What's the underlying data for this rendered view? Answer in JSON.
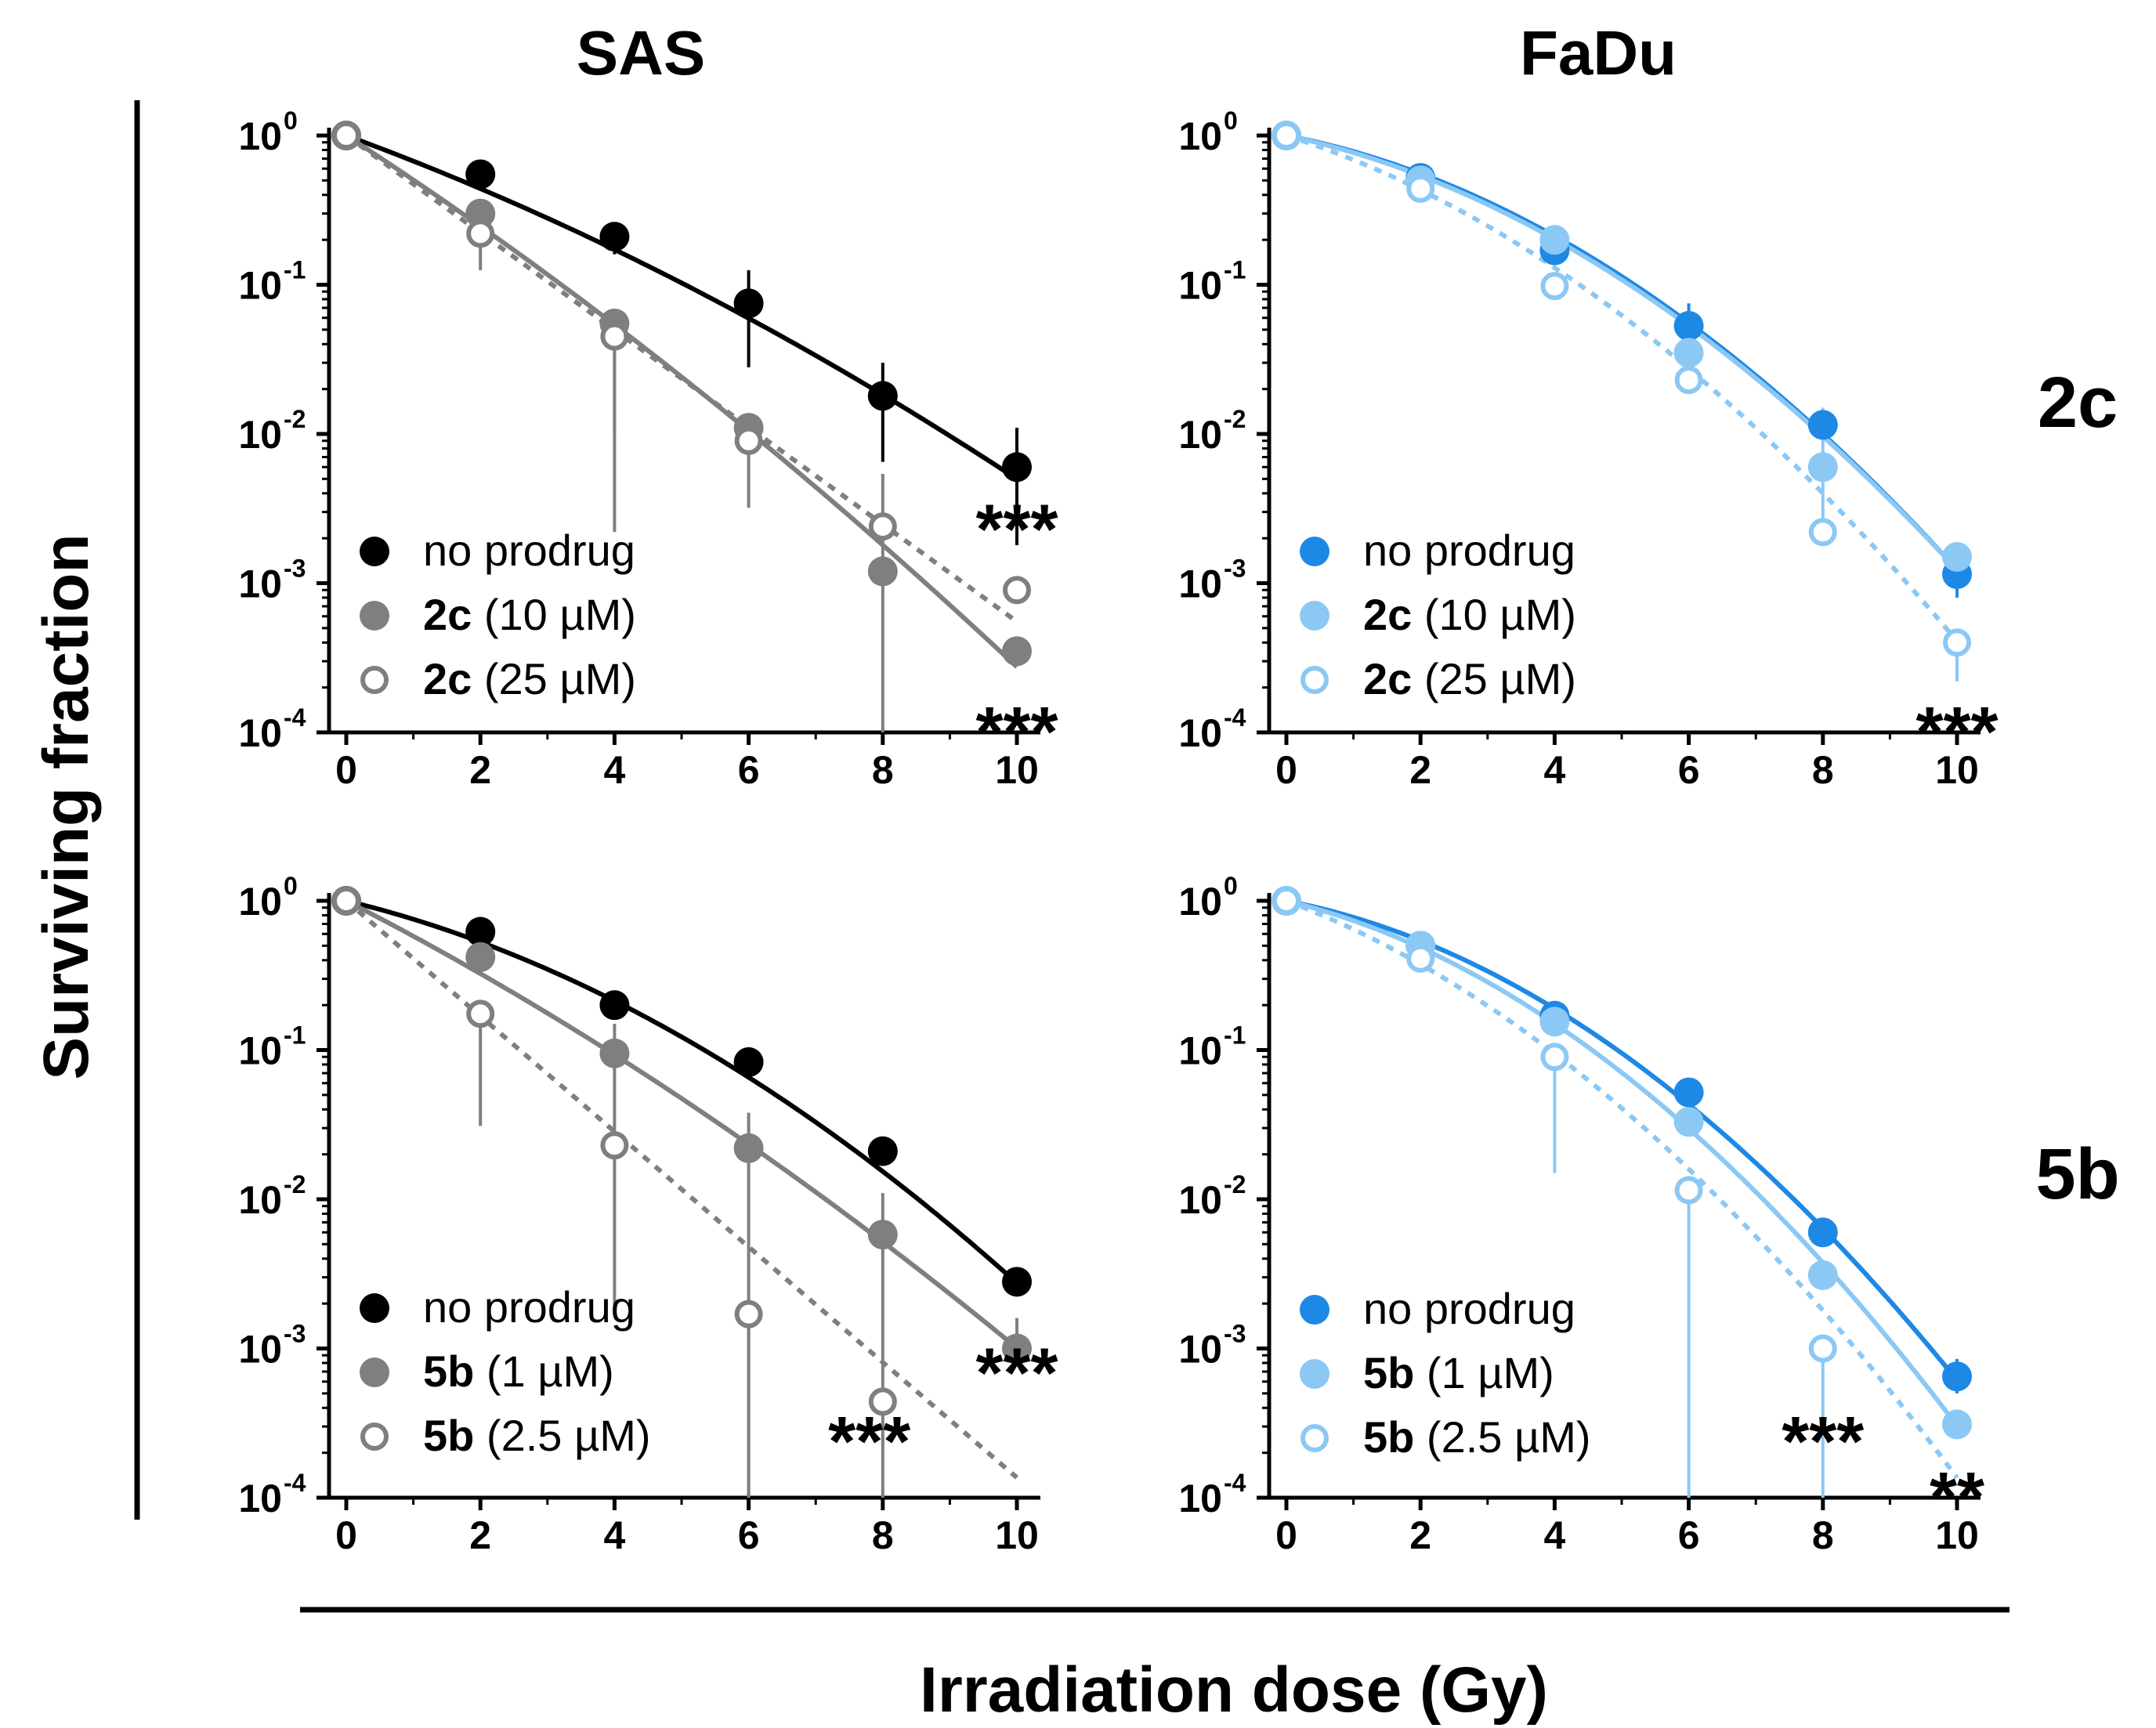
{
  "figure": {
    "columns": [
      {
        "title": "SAS"
      },
      {
        "title": "FaDu"
      }
    ],
    "rows": [
      {
        "label": "2c"
      },
      {
        "label": "5b"
      }
    ],
    "ylabel": "Surviving fraction",
    "xlabel": "Irradiation dose (Gy)"
  },
  "chart_data": [
    {
      "type": "scatter",
      "id": "sas-2c",
      "cell_line": "SAS",
      "compound": "2c",
      "x_ticks": [
        "0",
        "2",
        "4",
        "6",
        "8",
        "10"
      ],
      "y_ticks": [
        {
          "base": "10",
          "exp": "0"
        },
        {
          "base": "10",
          "exp": "-1"
        },
        {
          "base": "10",
          "exp": "-2"
        },
        {
          "base": "10",
          "exp": "-3"
        },
        {
          "base": "10",
          "exp": "-4"
        }
      ],
      "xlim": [
        0,
        10
      ],
      "ylim_log10": [
        -4,
        0
      ],
      "yscale": "log",
      "legend_position": "bottom-left",
      "series": [
        {
          "name": "no prodrug",
          "bold": "",
          "rest": "no prodrug",
          "color": "#000000",
          "marker": "filled",
          "line": "solid",
          "x": [
            0,
            2,
            4,
            6,
            8,
            10
          ],
          "y": [
            1.0,
            0.55,
            0.21,
            0.075,
            0.018,
            0.006
          ],
          "err_lo": [
            1.0,
            0.55,
            0.16,
            0.028,
            0.0065,
            0.0018
          ],
          "err_hi": [
            1.0,
            0.55,
            0.21,
            0.125,
            0.03,
            0.011
          ],
          "fit_alpha": 0.38,
          "fit_beta": 0.015
        },
        {
          "name": "2c (10 µM)",
          "bold": "2c",
          "rest": " (10 µM)",
          "color": "#7f7f7f",
          "marker": "filled",
          "line": "solid",
          "x": [
            0,
            2,
            4,
            6,
            8,
            10
          ],
          "y": [
            1.0,
            0.3,
            0.055,
            0.011,
            0.0012,
            0.00035
          ],
          "err_lo": [
            1.0,
            0.3,
            0.01,
            0.0032,
            5e-05,
            0.00035
          ],
          "err_hi": [
            1.0,
            0.3,
            0.06,
            0.011,
            0.0054,
            0.00035
          ],
          "fit_alpha": 0.67,
          "fit_beta": 0.015
        },
        {
          "name": "2c (25 µM)",
          "bold": "2c",
          "rest": " (25 µM)",
          "color": "#7f7f7f",
          "marker": "open",
          "line": "dotted",
          "x": [
            0,
            2,
            4,
            6,
            8,
            10
          ],
          "y": [
            1.0,
            0.22,
            0.045,
            0.009,
            0.0024,
            0.0009
          ],
          "err_lo": [
            1.0,
            0.125,
            0.0022,
            0.009,
            0.0024,
            0.0009
          ],
          "err_hi": [
            1.0,
            0.22,
            0.045,
            0.009,
            0.0024,
            0.0009
          ],
          "fit_alpha": 0.75,
          "fit_beta": 0.0
        }
      ],
      "annotations": [
        {
          "text": "***",
          "for": "2c (25 µM)",
          "x": 10,
          "y": 0.0025
        },
        {
          "text": "***",
          "for": "2c (10 µM)",
          "x": 10,
          "y": 0.00011
        }
      ]
    },
    {
      "type": "scatter",
      "id": "fadu-2c",
      "cell_line": "FaDu",
      "compound": "2c",
      "x_ticks": [
        "0",
        "2",
        "4",
        "6",
        "8",
        "10"
      ],
      "y_ticks": [
        {
          "base": "10",
          "exp": "0"
        },
        {
          "base": "10",
          "exp": "-1"
        },
        {
          "base": "10",
          "exp": "-2"
        },
        {
          "base": "10",
          "exp": "-3"
        },
        {
          "base": "10",
          "exp": "-4"
        }
      ],
      "xlim": [
        0,
        10
      ],
      "ylim_log10": [
        -4,
        0
      ],
      "yscale": "log",
      "legend_position": "bottom-left",
      "series": [
        {
          "name": "no prodrug",
          "bold": "",
          "rest": "no prodrug",
          "color": "#1e88e5",
          "marker": "filled",
          "line": "solid",
          "x": [
            0,
            2,
            4,
            6,
            8,
            10
          ],
          "y": [
            1.0,
            0.52,
            0.17,
            0.053,
            0.0115,
            0.00115
          ],
          "err_lo": [
            1.0,
            0.52,
            0.17,
            0.04,
            0.0115,
            0.0008
          ],
          "err_hi": [
            1.0,
            0.52,
            0.17,
            0.075,
            0.0115,
            0.00115
          ],
          "fit_alpha": 0.2,
          "fit_beta": 0.047
        },
        {
          "name": "2c (10 µM)",
          "bold": "2c",
          "rest": " (10 µM)",
          "color": "#8cc8f4",
          "marker": "filled",
          "line": "solid",
          "x": [
            0,
            2,
            4,
            6,
            8,
            10
          ],
          "y": [
            1.0,
            0.5,
            0.2,
            0.035,
            0.006,
            0.0015
          ],
          "err_lo": [
            1.0,
            0.5,
            0.2,
            0.035,
            0.0022,
            0.0015
          ],
          "err_hi": [
            1.0,
            0.5,
            0.2,
            0.035,
            0.015,
            0.0015
          ],
          "fit_alpha": 0.22,
          "fit_beta": 0.045
        },
        {
          "name": "2c (25 µM)",
          "bold": "2c",
          "rest": " (25 µM)",
          "color": "#8cc8f4",
          "marker": "open",
          "line": "dotted",
          "x": [
            0,
            2,
            4,
            6,
            8,
            10
          ],
          "y": [
            1.0,
            0.44,
            0.098,
            0.023,
            0.0022,
            0.0004
          ],
          "err_lo": [
            1.0,
            0.44,
            0.098,
            0.023,
            0.0022,
            0.00022
          ],
          "err_hi": [
            1.0,
            0.44,
            0.098,
            0.023,
            0.0022,
            0.0004
          ],
          "fit_alpha": 0.33,
          "fit_beta": 0.045
        }
      ],
      "annotations": [
        {
          "text": "***",
          "for": "2c (25 µM)",
          "x": 10,
          "y": 0.00011
        }
      ]
    },
    {
      "type": "scatter",
      "id": "sas-5b",
      "cell_line": "SAS",
      "compound": "5b",
      "x_ticks": [
        "0",
        "2",
        "4",
        "6",
        "8",
        "10"
      ],
      "y_ticks": [
        {
          "base": "10",
          "exp": "0"
        },
        {
          "base": "10",
          "exp": "-1"
        },
        {
          "base": "10",
          "exp": "-2"
        },
        {
          "base": "10",
          "exp": "-3"
        },
        {
          "base": "10",
          "exp": "-4"
        }
      ],
      "xlim": [
        0,
        10
      ],
      "ylim_log10": [
        -4,
        0
      ],
      "yscale": "log",
      "legend_position": "bottom-left",
      "series": [
        {
          "name": "no prodrug",
          "bold": "",
          "rest": "no prodrug",
          "color": "#000000",
          "marker": "filled",
          "line": "solid",
          "x": [
            0,
            2,
            4,
            6,
            8,
            10
          ],
          "y": [
            1.0,
            0.62,
            0.2,
            0.083,
            0.021,
            0.0028
          ],
          "err_lo": [
            1.0,
            0.62,
            0.2,
            0.083,
            0.021,
            0.0028
          ],
          "err_hi": [
            1.0,
            0.62,
            0.2,
            0.083,
            0.021,
            0.0028
          ],
          "fit_alpha": 0.25,
          "fit_beta": 0.034
        },
        {
          "name": "5b (1 µM)",
          "bold": "5b",
          "rest": " (1 µM)",
          "color": "#7f7f7f",
          "marker": "filled",
          "line": "solid",
          "x": [
            0,
            2,
            4,
            6,
            8,
            10
          ],
          "y": [
            1.0,
            0.42,
            0.095,
            0.022,
            0.0058,
            0.001
          ],
          "err_lo": [
            1.0,
            0.42,
            0.0017,
            0.0001,
            0.0001,
            0.001
          ],
          "err_hi": [
            1.0,
            0.42,
            0.15,
            0.038,
            0.011,
            0.0016
          ],
          "fit_alpha": 0.53,
          "fit_beta": 0.016
        },
        {
          "name": "5b (2.5 µM)",
          "bold": "5b",
          "rest": " (2.5 µM)",
          "color": "#7f7f7f",
          "marker": "open",
          "line": "dotted",
          "x": [
            0,
            2,
            4,
            6,
            8,
            10
          ],
          "y": [
            1.0,
            0.175,
            0.023,
            0.0017,
            0.00044,
            null
          ],
          "err_lo": [
            1.0,
            0.031,
            0.023,
            0.0001,
            0.00044,
            null
          ],
          "err_hi": [
            1.0,
            0.175,
            0.023,
            0.0017,
            0.00044,
            null
          ],
          "fit_alpha": 0.89,
          "fit_beta": 0.0
        }
      ],
      "annotations": [
        {
          "text": "***",
          "for": "5b (1 µM)",
          "x": 10,
          "y": 0.00075
        },
        {
          "text": "***",
          "for": "5b (2.5 µM)",
          "x": 7.8,
          "y": 0.00026
        }
      ]
    },
    {
      "type": "scatter",
      "id": "fadu-5b",
      "cell_line": "FaDu",
      "compound": "5b",
      "x_ticks": [
        "0",
        "2",
        "4",
        "6",
        "8",
        "10"
      ],
      "y_ticks": [
        {
          "base": "10",
          "exp": "0"
        },
        {
          "base": "10",
          "exp": "-1"
        },
        {
          "base": "10",
          "exp": "-2"
        },
        {
          "base": "10",
          "exp": "-3"
        },
        {
          "base": "10",
          "exp": "-4"
        }
      ],
      "xlim": [
        0,
        10
      ],
      "ylim_log10": [
        -4,
        0
      ],
      "yscale": "log",
      "legend_position": "bottom-left",
      "series": [
        {
          "name": "no prodrug",
          "bold": "",
          "rest": "no prodrug",
          "color": "#1e88e5",
          "marker": "filled",
          "line": "solid",
          "x": [
            0,
            2,
            4,
            6,
            8,
            10
          ],
          "y": [
            1.0,
            0.5,
            0.17,
            0.052,
            0.006,
            0.00065
          ],
          "err_lo": [
            1.0,
            0.5,
            0.17,
            0.052,
            0.006,
            0.0005
          ],
          "err_hi": [
            1.0,
            0.5,
            0.17,
            0.052,
            0.006,
            0.00085
          ],
          "fit_alpha": 0.2,
          "fit_beta": 0.054
        },
        {
          "name": "5b (1 µM)",
          "bold": "5b",
          "rest": " (1 µM)",
          "color": "#8cc8f4",
          "marker": "filled",
          "line": "solid",
          "x": [
            0,
            2,
            4,
            6,
            8,
            10
          ],
          "y": [
            1.0,
            0.5,
            0.155,
            0.033,
            0.0031,
            0.00031
          ],
          "err_lo": [
            1.0,
            0.5,
            0.155,
            0.033,
            0.0031,
            0.00031
          ],
          "err_hi": [
            1.0,
            0.5,
            0.155,
            0.033,
            0.0031,
            0.00031
          ],
          "fit_alpha": 0.25,
          "fit_beta": 0.056
        },
        {
          "name": "5b (2.5 µM)",
          "bold": "5b",
          "rest": " (2.5 µM)",
          "color": "#8cc8f4",
          "marker": "open",
          "line": "dotted",
          "x": [
            0,
            2,
            4,
            6,
            8,
            10
          ],
          "y": [
            1.0,
            0.41,
            0.09,
            0.0115,
            0.001,
            null
          ],
          "err_lo": [
            1.0,
            0.41,
            0.015,
            0.0001,
            0.0001,
            null
          ],
          "err_hi": [
            1.0,
            0.41,
            0.09,
            0.0115,
            0.001,
            null
          ],
          "fit_alpha": 0.39,
          "fit_beta": 0.05
        }
      ],
      "annotations": [
        {
          "text": "***",
          "for": "5b (2.5 µM)",
          "x": 8,
          "y": 0.00026
        },
        {
          "text": "**",
          "for": "5b (1 µM)",
          "x": 10,
          "y": 0.00011
        }
      ]
    }
  ]
}
